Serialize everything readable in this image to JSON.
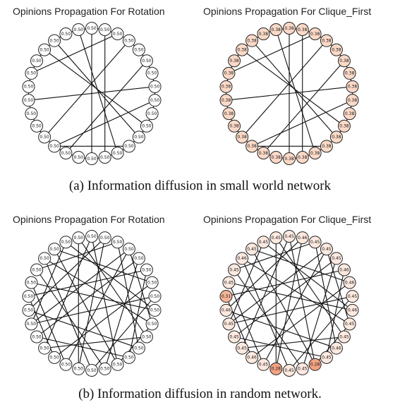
{
  "figure": {
    "caption_a": "(a) Information diffusion in small world network",
    "caption_b": "(b) Information diffusion in random network.",
    "colors": {
      "node_050": "#ffffff",
      "node_038": "#fbd9c7",
      "node_045": "#fde9df",
      "node_028": "#f1a382",
      "node_031": "#f3b496",
      "node_046": "#fee9df"
    },
    "panels": [
      {
        "id": "sw-rotation",
        "title": "Opinions Propagation For Rotation",
        "labels": [
          "0.50",
          "0.50",
          "0.50",
          "0.50",
          "0.50",
          "0.50",
          "0.50",
          "0.50",
          "0.50",
          "0.50",
          "0.50",
          "0.50",
          "0.50",
          "0.50",
          "0.50",
          "0.50",
          "0.50",
          "0.50",
          "0.50",
          "0.50",
          "0.50",
          "0.50",
          "0.50",
          "0.50",
          "0.50",
          "0.50",
          "0.50",
          "0.50",
          "0.50",
          "0.50"
        ],
        "colors": [
          "#ffffff",
          "#ffffff",
          "#ffffff",
          "#ffffff",
          "#ffffff",
          "#ffffff",
          "#ffffff",
          "#ffffff",
          "#ffffff",
          "#ffffff",
          "#ffffff",
          "#ffffff",
          "#ffffff",
          "#ffffff",
          "#ffffff",
          "#ffffff",
          "#ffffff",
          "#ffffff",
          "#ffffff",
          "#ffffff",
          "#ffffff",
          "#ffffff",
          "#ffffff",
          "#ffffff",
          "#ffffff",
          "#ffffff",
          "#ffffff",
          "#ffffff",
          "#ffffff",
          "#ffffff"
        ],
        "edges": [
          [
            0,
            15
          ],
          [
            1,
            14
          ],
          [
            29,
            13
          ],
          [
            2,
            24
          ],
          [
            3,
            19
          ],
          [
            22,
            7
          ],
          [
            27,
            11
          ],
          [
            26,
            10
          ],
          [
            5,
            17
          ],
          [
            8,
            18
          ],
          [
            12,
            18
          ]
        ],
        "ring": true
      },
      {
        "id": "sw-clique",
        "title": "Opinions Propagation For Clique_First",
        "labels": [
          "0.38",
          "0.38",
          "0.38",
          "0.38",
          "0.38",
          "0.38",
          "0.38",
          "0.38",
          "0.38",
          "0.38",
          "0.38",
          "0.38",
          "0.38",
          "0.38",
          "0.38",
          "0.38",
          "0.38",
          "0.38",
          "0.38",
          "0.38",
          "0.38",
          "0.38",
          "0.38",
          "0.38",
          "0.38",
          "0.38",
          "0.38",
          "0.38",
          "0.38",
          "0.38"
        ],
        "colors": [
          "#fbd9c7",
          "#fbd9c7",
          "#fbd9c7",
          "#fbd9c7",
          "#fbd9c7",
          "#fbd9c7",
          "#fbd9c7",
          "#fbd9c7",
          "#fbd9c7",
          "#fbd9c7",
          "#fbd9c7",
          "#fbd9c7",
          "#fbd9c7",
          "#fbd9c7",
          "#fbd9c7",
          "#fbd9c7",
          "#fbd9c7",
          "#fbd9c7",
          "#fbd9c7",
          "#fbd9c7",
          "#fbd9c7",
          "#fbd9c7",
          "#fbd9c7",
          "#fbd9c7",
          "#fbd9c7",
          "#fbd9c7",
          "#fbd9c7",
          "#fbd9c7",
          "#fbd9c7",
          "#fbd9c7"
        ],
        "edges": [
          [
            0,
            15
          ],
          [
            1,
            14
          ],
          [
            29,
            13
          ],
          [
            2,
            24
          ],
          [
            3,
            19
          ],
          [
            22,
            7
          ],
          [
            27,
            11
          ],
          [
            26,
            10
          ],
          [
            5,
            17
          ],
          [
            8,
            18
          ],
          [
            12,
            18
          ]
        ],
        "ring": true
      },
      {
        "id": "rand-rotation",
        "title": "Opinions Propagation For Rotation",
        "labels": [
          "0.50",
          "0.50",
          "0.50",
          "0.50",
          "0.50",
          "0.50",
          "0.50",
          "0.50",
          "0.50",
          "0.50",
          "0.50",
          "0.50",
          "0.50",
          "0.50",
          "0.50",
          "0.50",
          "0.50",
          "0.50",
          "0.50",
          "0.50",
          "0.50",
          "0.50",
          "0.50",
          "0.50",
          "0.50",
          "0.50",
          "0.50",
          "0.50",
          "0.50",
          "0.50"
        ],
        "colors": [
          "#ffffff",
          "#ffffff",
          "#ffffff",
          "#ffffff",
          "#ffffff",
          "#ffffff",
          "#ffffff",
          "#ffffff",
          "#ffffff",
          "#ffffff",
          "#ffffff",
          "#ffffff",
          "#ffffff",
          "#ffffff",
          "#ffffff",
          "#ffffff",
          "#ffffff",
          "#ffffff",
          "#ffffff",
          "#ffffff",
          "#ffffff",
          "#ffffff",
          "#ffffff",
          "#ffffff",
          "#ffffff",
          "#ffffff",
          "#ffffff",
          "#ffffff",
          "#ffffff",
          "#ffffff"
        ],
        "edges": [
          [
            0,
            13
          ],
          [
            0,
            19
          ],
          [
            1,
            16
          ],
          [
            1,
            22
          ],
          [
            2,
            11
          ],
          [
            2,
            25
          ],
          [
            3,
            17
          ],
          [
            3,
            9
          ],
          [
            4,
            20
          ],
          [
            4,
            14
          ],
          [
            5,
            23
          ],
          [
            5,
            12
          ],
          [
            6,
            18
          ],
          [
            6,
            27
          ],
          [
            7,
            21
          ],
          [
            7,
            15
          ],
          [
            8,
            24
          ],
          [
            8,
            28
          ],
          [
            9,
            26
          ],
          [
            10,
            19
          ],
          [
            10,
            29
          ],
          [
            11,
            22
          ],
          [
            12,
            20
          ],
          [
            13,
            27
          ],
          [
            14,
            25
          ],
          [
            16,
            29
          ],
          [
            17,
            24
          ],
          [
            18,
            23
          ],
          [
            21,
            28
          ],
          [
            26,
            15
          ],
          [
            3,
            21
          ],
          [
            9,
            13
          ]
        ],
        "ring": false
      },
      {
        "id": "rand-clique",
        "title": "Opinions Propagation For Clique_First",
        "labels": [
          "0.45",
          "0.46",
          "0.45",
          "0.45",
          "0.45",
          "0.46",
          "0.46",
          "0.45",
          "0.46",
          "0.45",
          "0.45",
          "0.46",
          "0.45",
          "0.28",
          "0.45",
          "0.45",
          "0.28",
          "0.45",
          "0.46",
          "0.45",
          "0.45",
          "0.45",
          "0.46",
          "0.31",
          "0.45",
          "0.45",
          "0.46",
          "0.45",
          "0.45",
          "0.45"
        ],
        "colors": [
          "#fde9df",
          "#fee9df",
          "#fde9df",
          "#fde9df",
          "#fde9df",
          "#fee9df",
          "#fee9df",
          "#fde9df",
          "#fee9df",
          "#fde9df",
          "#fde9df",
          "#fee9df",
          "#fde9df",
          "#f1a382",
          "#fde9df",
          "#fde9df",
          "#f1a382",
          "#fde9df",
          "#fee9df",
          "#fde9df",
          "#fde9df",
          "#fde9df",
          "#fee9df",
          "#f3b496",
          "#fde9df",
          "#fde9df",
          "#fee9df",
          "#fde9df",
          "#fde9df",
          "#fde9df"
        ],
        "edges": [
          [
            0,
            13
          ],
          [
            0,
            19
          ],
          [
            1,
            16
          ],
          [
            1,
            22
          ],
          [
            2,
            11
          ],
          [
            2,
            25
          ],
          [
            3,
            17
          ],
          [
            3,
            9
          ],
          [
            4,
            20
          ],
          [
            4,
            14
          ],
          [
            5,
            23
          ],
          [
            5,
            12
          ],
          [
            6,
            18
          ],
          [
            6,
            27
          ],
          [
            7,
            21
          ],
          [
            7,
            15
          ],
          [
            8,
            24
          ],
          [
            8,
            28
          ],
          [
            9,
            26
          ],
          [
            10,
            19
          ],
          [
            10,
            29
          ],
          [
            11,
            22
          ],
          [
            12,
            20
          ],
          [
            13,
            27
          ],
          [
            14,
            25
          ],
          [
            16,
            29
          ],
          [
            17,
            24
          ],
          [
            18,
            23
          ],
          [
            21,
            28
          ],
          [
            26,
            15
          ],
          [
            3,
            21
          ],
          [
            9,
            13
          ]
        ],
        "ring": false
      }
    ]
  }
}
